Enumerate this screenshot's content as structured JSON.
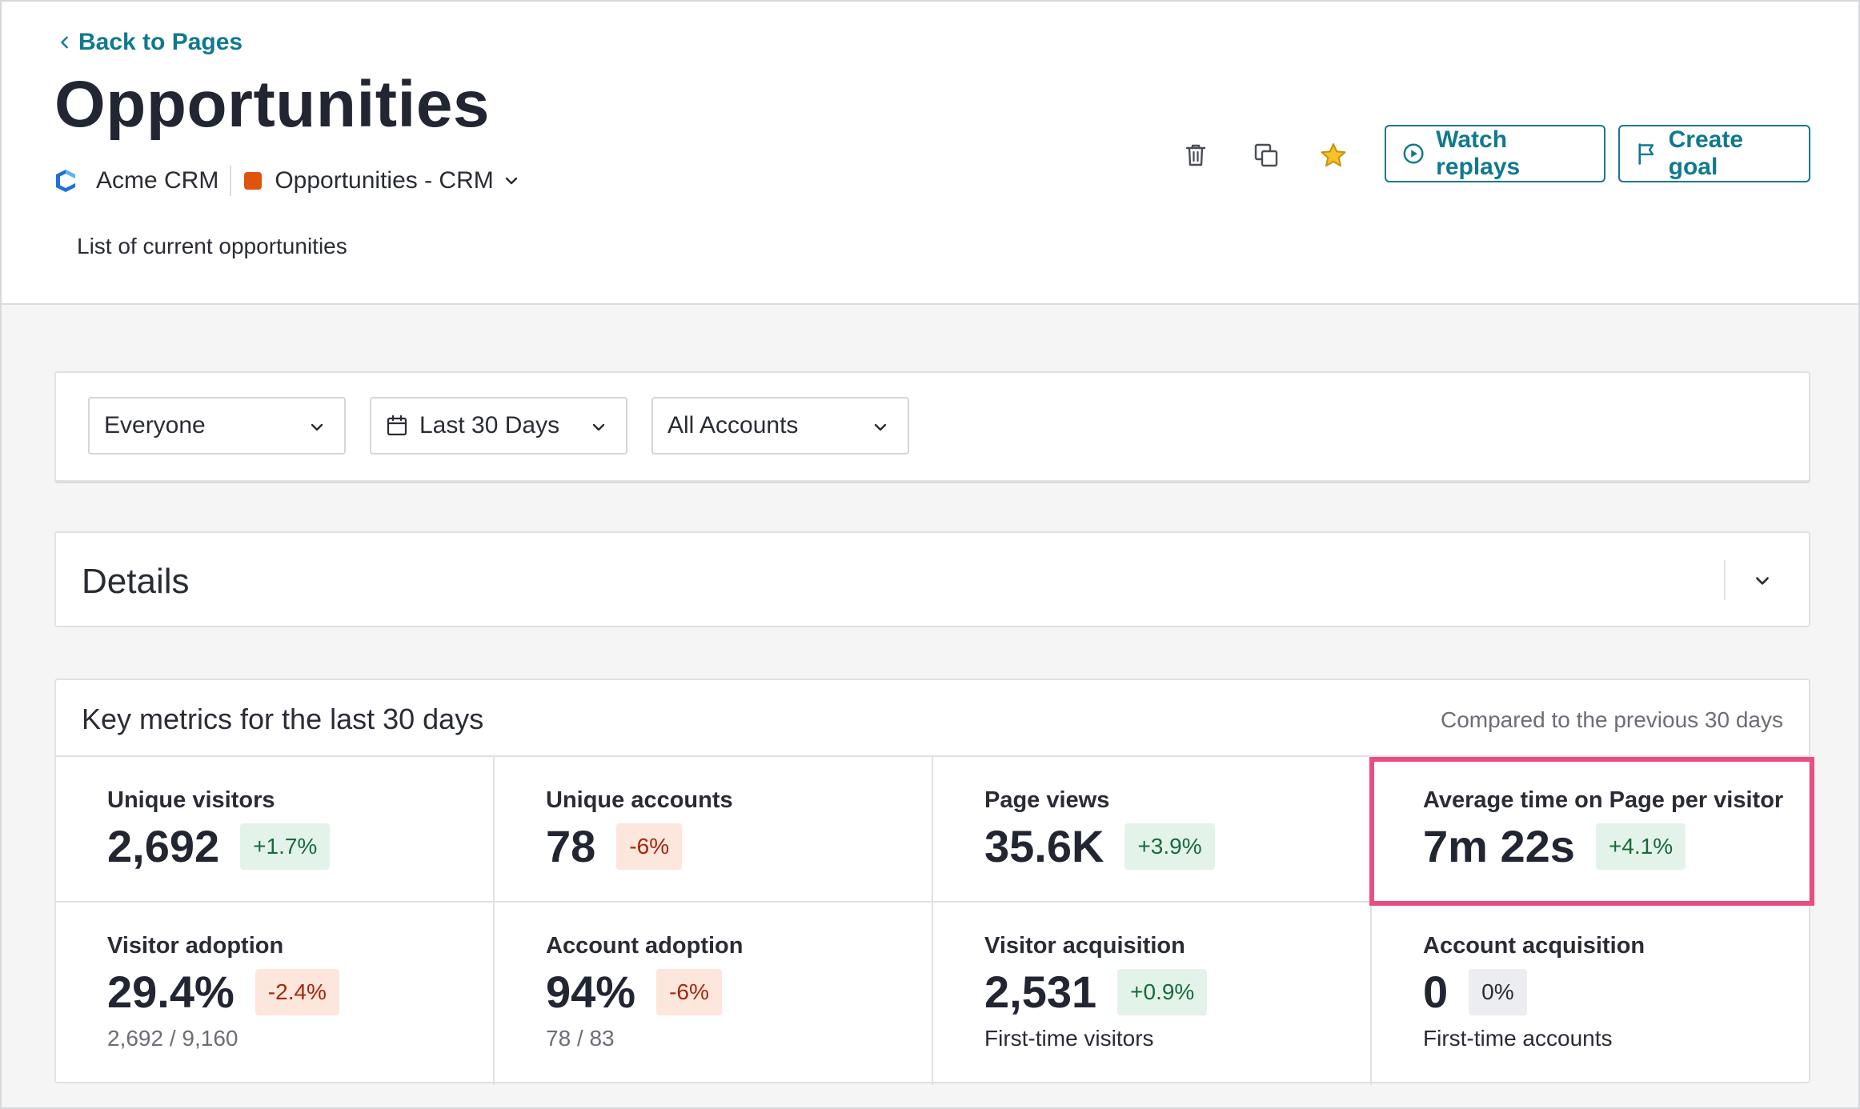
{
  "nav": {
    "back_label": "Back to Pages"
  },
  "page": {
    "title": "Opportunities",
    "app_name": "Acme CRM",
    "group_name": "Opportunities - CRM",
    "group_color": "#e0530f",
    "description": "List of current opportunities"
  },
  "actions": {
    "delete_icon": "trash-icon",
    "copy_icon": "copy-icon",
    "favorite_icon": "star-icon",
    "watch_replays_label": "Watch replays",
    "create_goal_label": "Create goal"
  },
  "filters": {
    "segment": "Everyone",
    "date_range": "Last 30 Days",
    "accounts": "All Accounts"
  },
  "details": {
    "title": "Details"
  },
  "metrics": {
    "title": "Key metrics for the last 30 days",
    "compare_note": "Compared to the previous 30 days",
    "items": [
      {
        "label": "Unique visitors",
        "value": "2,692",
        "change": "+1.7%",
        "trend": "positive",
        "sub": ""
      },
      {
        "label": "Unique accounts",
        "value": "78",
        "change": "-6%",
        "trend": "negative",
        "sub": ""
      },
      {
        "label": "Page views",
        "value": "35.6K",
        "change": "+3.9%",
        "trend": "positive",
        "sub": ""
      },
      {
        "label": "Average time on Page per visitor",
        "value": "7m 22s",
        "change": "+4.1%",
        "trend": "positive",
        "sub": "",
        "highlighted": true
      },
      {
        "label": "Visitor adoption",
        "value": "29.4%",
        "change": "-2.4%",
        "trend": "negative",
        "sub": "2,692 / 9,160"
      },
      {
        "label": "Account adoption",
        "value": "94%",
        "change": "-6%",
        "trend": "negative",
        "sub": "78 / 83"
      },
      {
        "label": "Visitor acquisition",
        "value": "2,531",
        "change": "+0.9%",
        "trend": "positive",
        "sub": "First-time visitors"
      },
      {
        "label": "Account acquisition",
        "value": "0",
        "change": "0%",
        "trend": "neutral",
        "sub": "First-time accounts"
      }
    ]
  },
  "colors": {
    "accent": "#11798e",
    "positive_bg": "#e4f3ea",
    "negative_bg": "#fde6db",
    "neutral_bg": "#ecedf0",
    "highlight_border": "#ea4d83",
    "star": "#e2a406"
  }
}
